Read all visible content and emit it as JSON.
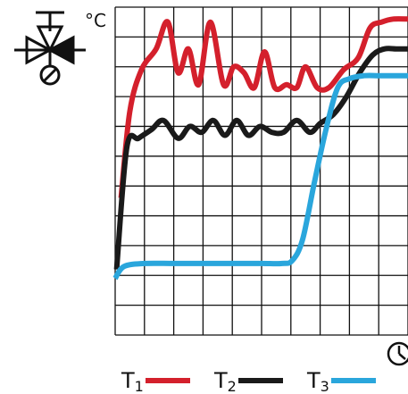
{
  "chart_data": {
    "type": "line",
    "ylabel": "°C",
    "xlabel": "",
    "x_axis_icon": "clock-icon",
    "title_icon": "three-way-valve-icon",
    "grid": true,
    "xlim": [
      0,
      10
    ],
    "ylim": [
      0,
      11
    ],
    "legend_position": "bottom",
    "series": [
      {
        "name": "T1",
        "name_main": "T",
        "name_sub": "1",
        "color": "#d4202c",
        "x": [
          0.2,
          0.5,
          0.9,
          1.4,
          1.8,
          2.15,
          2.5,
          2.85,
          3.25,
          3.7,
          4.05,
          4.4,
          4.75,
          5.1,
          5.45,
          5.85,
          6.2,
          6.5,
          6.9,
          7.3,
          7.8,
          8.3,
          8.7,
          9.1,
          9.5,
          10.0
        ],
        "y": [
          4.6,
          7.5,
          8.9,
          9.6,
          10.5,
          8.8,
          9.6,
          8.4,
          10.5,
          8.4,
          9.0,
          8.8,
          8.3,
          9.5,
          8.3,
          8.4,
          8.3,
          9.0,
          8.3,
          8.3,
          8.9,
          9.3,
          10.3,
          10.5,
          10.6,
          10.6
        ]
      },
      {
        "name": "T2",
        "name_main": "T",
        "name_sub": "2",
        "color": "#1a1a1a",
        "x": [
          0.05,
          0.4,
          0.8,
          1.25,
          1.65,
          2.15,
          2.55,
          2.95,
          3.35,
          3.75,
          4.15,
          4.55,
          4.95,
          5.35,
          5.75,
          6.2,
          6.65,
          7.0,
          7.45,
          7.9,
          8.35,
          8.8,
          9.2,
          9.6,
          10.0
        ],
        "y": [
          2.2,
          6.3,
          6.6,
          6.9,
          7.2,
          6.6,
          7.0,
          6.8,
          7.2,
          6.7,
          7.2,
          6.7,
          7.0,
          6.8,
          6.8,
          7.2,
          6.8,
          7.1,
          7.4,
          8.0,
          8.8,
          9.4,
          9.6,
          9.6,
          9.6
        ]
      },
      {
        "name": "T3",
        "name_main": "T",
        "name_sub": "3",
        "color": "#2aa6dc",
        "x": [
          0.0,
          0.3,
          1.0,
          2.0,
          3.0,
          4.0,
          5.0,
          5.7,
          6.05,
          6.4,
          6.8,
          7.2,
          7.6,
          8.0,
          8.5,
          9.0,
          9.5,
          10.0
        ],
        "y": [
          1.9,
          2.3,
          2.4,
          2.4,
          2.4,
          2.4,
          2.4,
          2.4,
          2.5,
          3.2,
          5.1,
          6.9,
          8.3,
          8.6,
          8.7,
          8.7,
          8.7,
          8.7
        ]
      }
    ]
  }
}
